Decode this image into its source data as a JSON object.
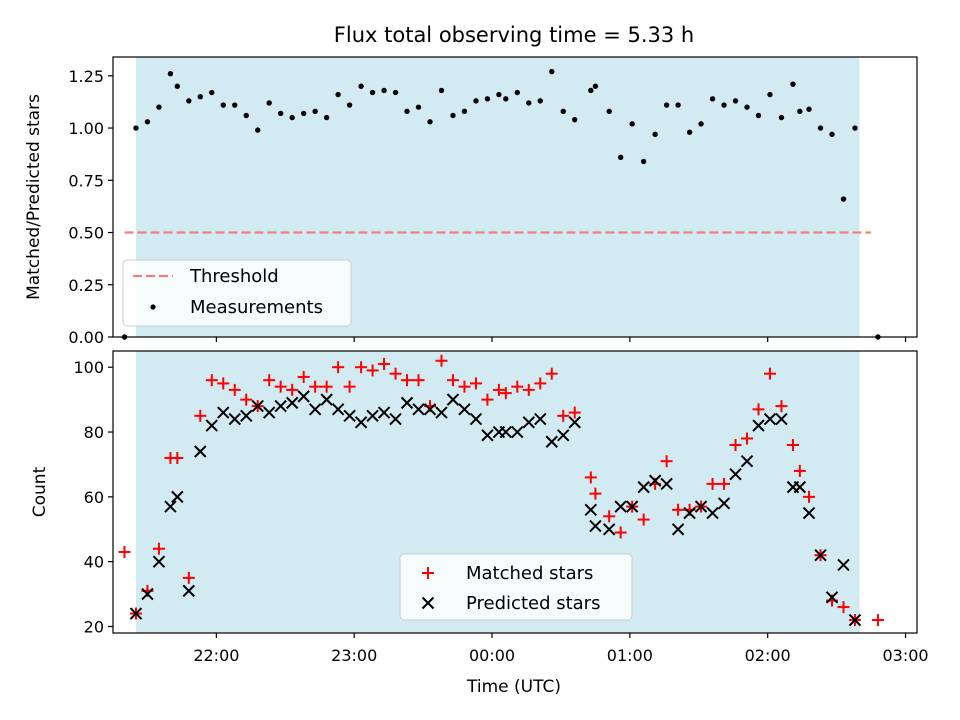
{
  "chart_data": [
    {
      "type": "scatter",
      "title": "Flux total observing time = 5.33 h",
      "xlabel": "",
      "ylabel": "Matched/Predicted stars",
      "ylim": [
        0,
        1.34
      ],
      "xlim": [
        "21:15",
        "03:05"
      ],
      "yticks": [
        "0.00",
        "0.25",
        "0.50",
        "0.75",
        "1.00",
        "1.25"
      ],
      "shaded_span": {
        "start": "21:25",
        "end": "02:40",
        "color": "#add8e6"
      },
      "threshold": {
        "name": "Threshold",
        "value": 0.5,
        "color": "#f08080",
        "x_start": "21:20",
        "x_end": "02:45"
      },
      "legend": [
        "Threshold",
        "Measurements"
      ],
      "legend_position": "lower-left",
      "series": [
        {
          "name": "Measurements",
          "color": "#000000",
          "marker": "dot",
          "points": [
            [
              "21:20",
              0.0
            ],
            [
              "21:25",
              1.0
            ],
            [
              "21:30",
              1.03
            ],
            [
              "21:35",
              1.1
            ],
            [
              "21:40",
              1.26
            ],
            [
              "21:43",
              1.2
            ],
            [
              "21:48",
              1.13
            ],
            [
              "21:53",
              1.15
            ],
            [
              "21:58",
              1.17
            ],
            [
              "22:03",
              1.11
            ],
            [
              "22:08",
              1.11
            ],
            [
              "22:13",
              1.06
            ],
            [
              "22:18",
              0.99
            ],
            [
              "22:23",
              1.12
            ],
            [
              "22:28",
              1.07
            ],
            [
              "22:33",
              1.05
            ],
            [
              "22:38",
              1.07
            ],
            [
              "22:43",
              1.08
            ],
            [
              "22:48",
              1.05
            ],
            [
              "22:53",
              1.16
            ],
            [
              "22:58",
              1.11
            ],
            [
              "23:03",
              1.2
            ],
            [
              "23:08",
              1.17
            ],
            [
              "23:13",
              1.18
            ],
            [
              "23:18",
              1.17
            ],
            [
              "23:23",
              1.08
            ],
            [
              "23:28",
              1.1
            ],
            [
              "23:33",
              1.03
            ],
            [
              "23:38",
              1.18
            ],
            [
              "23:43",
              1.06
            ],
            [
              "23:48",
              1.08
            ],
            [
              "23:53",
              1.13
            ],
            [
              "23:58",
              1.14
            ],
            [
              "00:03",
              1.16
            ],
            [
              "00:06",
              1.14
            ],
            [
              "00:11",
              1.17
            ],
            [
              "00:16",
              1.12
            ],
            [
              "00:21",
              1.13
            ],
            [
              "00:26",
              1.27
            ],
            [
              "00:31",
              1.08
            ],
            [
              "00:36",
              1.04
            ],
            [
              "00:43",
              1.18
            ],
            [
              "00:45",
              1.2
            ],
            [
              "00:51",
              1.08
            ],
            [
              "00:56",
              0.86
            ],
            [
              "01:01",
              1.02
            ],
            [
              "01:06",
              0.84
            ],
            [
              "01:11",
              0.97
            ],
            [
              "01:16",
              1.11
            ],
            [
              "01:21",
              1.11
            ],
            [
              "01:26",
              0.98
            ],
            [
              "01:31",
              1.02
            ],
            [
              "01:36",
              1.14
            ],
            [
              "01:41",
              1.11
            ],
            [
              "01:46",
              1.13
            ],
            [
              "01:51",
              1.1
            ],
            [
              "01:56",
              1.06
            ],
            [
              "02:01",
              1.16
            ],
            [
              "02:06",
              1.05
            ],
            [
              "02:11",
              1.21
            ],
            [
              "02:14",
              1.08
            ],
            [
              "02:18",
              1.09
            ],
            [
              "02:23",
              1.0
            ],
            [
              "02:28",
              0.97
            ],
            [
              "02:33",
              0.66
            ],
            [
              "02:38",
              1.0
            ],
            [
              "02:48",
              0.0
            ]
          ]
        }
      ]
    },
    {
      "type": "scatter",
      "title": "",
      "xlabel": "Time (UTC)",
      "ylabel": "Count",
      "ylim": [
        18,
        105
      ],
      "xlim": [
        "21:15",
        "03:05"
      ],
      "yticks": [
        "20",
        "40",
        "60",
        "80",
        "100"
      ],
      "xticks": [
        "22:00",
        "23:00",
        "00:00",
        "01:00",
        "02:00",
        "03:00"
      ],
      "shaded_span": {
        "start": "21:25",
        "end": "02:40",
        "color": "#add8e6"
      },
      "legend": [
        "Matched stars",
        "Predicted stars"
      ],
      "legend_position": "lower-center",
      "series": [
        {
          "name": "Matched stars",
          "color": "#ff0000",
          "marker": "plus",
          "points": [
            [
              "21:20",
              43
            ],
            [
              "21:25",
              24
            ],
            [
              "21:30",
              31
            ],
            [
              "21:35",
              44
            ],
            [
              "21:40",
              72
            ],
            [
              "21:43",
              72
            ],
            [
              "21:48",
              35
            ],
            [
              "21:53",
              85
            ],
            [
              "21:58",
              96
            ],
            [
              "22:03",
              95
            ],
            [
              "22:08",
              93
            ],
            [
              "22:13",
              90
            ],
            [
              "22:18",
              88
            ],
            [
              "22:23",
              96
            ],
            [
              "22:28",
              94
            ],
            [
              "22:33",
              93
            ],
            [
              "22:38",
              97
            ],
            [
              "22:43",
              94
            ],
            [
              "22:48",
              94
            ],
            [
              "22:53",
              100
            ],
            [
              "22:58",
              94
            ],
            [
              "23:03",
              100
            ],
            [
              "23:08",
              99
            ],
            [
              "23:13",
              101
            ],
            [
              "23:18",
              98
            ],
            [
              "23:23",
              96
            ],
            [
              "23:28",
              96
            ],
            [
              "23:33",
              88
            ],
            [
              "23:38",
              102
            ],
            [
              "23:43",
              96
            ],
            [
              "23:48",
              94
            ],
            [
              "23:53",
              95
            ],
            [
              "23:58",
              90
            ],
            [
              "00:03",
              93
            ],
            [
              "00:06",
              92
            ],
            [
              "00:11",
              94
            ],
            [
              "00:16",
              93
            ],
            [
              "00:21",
              95
            ],
            [
              "00:26",
              98
            ],
            [
              "00:31",
              85
            ],
            [
              "00:36",
              86
            ],
            [
              "00:43",
              66
            ],
            [
              "00:45",
              61
            ],
            [
              "00:51",
              54
            ],
            [
              "00:56",
              49
            ],
            [
              "01:01",
              57
            ],
            [
              "01:06",
              53
            ],
            [
              "01:11",
              64
            ],
            [
              "01:16",
              71
            ],
            [
              "01:21",
              56
            ],
            [
              "01:26",
              56
            ],
            [
              "01:31",
              57
            ],
            [
              "01:36",
              64
            ],
            [
              "01:41",
              64
            ],
            [
              "01:46",
              76
            ],
            [
              "01:51",
              78
            ],
            [
              "01:56",
              87
            ],
            [
              "02:01",
              98
            ],
            [
              "02:06",
              88
            ],
            [
              "02:11",
              76
            ],
            [
              "02:14",
              68
            ],
            [
              "02:18",
              60
            ],
            [
              "02:23",
              42
            ],
            [
              "02:28",
              28
            ],
            [
              "02:33",
              26
            ],
            [
              "02:38",
              22
            ],
            [
              "02:48",
              22
            ]
          ]
        },
        {
          "name": "Predicted stars",
          "color": "#000000",
          "marker": "cross",
          "points": [
            [
              "21:25",
              24
            ],
            [
              "21:30",
              30
            ],
            [
              "21:35",
              40
            ],
            [
              "21:40",
              57
            ],
            [
              "21:43",
              60
            ],
            [
              "21:48",
              31
            ],
            [
              "21:53",
              74
            ],
            [
              "21:58",
              82
            ],
            [
              "22:03",
              86
            ],
            [
              "22:08",
              84
            ],
            [
              "22:13",
              85
            ],
            [
              "22:18",
              88
            ],
            [
              "22:23",
              86
            ],
            [
              "22:28",
              88
            ],
            [
              "22:33",
              89
            ],
            [
              "22:38",
              91
            ],
            [
              "22:43",
              87
            ],
            [
              "22:48",
              90
            ],
            [
              "22:53",
              87
            ],
            [
              "22:58",
              85
            ],
            [
              "23:03",
              83
            ],
            [
              "23:08",
              85
            ],
            [
              "23:13",
              86
            ],
            [
              "23:18",
              84
            ],
            [
              "23:23",
              89
            ],
            [
              "23:28",
              87
            ],
            [
              "23:33",
              87
            ],
            [
              "23:38",
              86
            ],
            [
              "23:43",
              90
            ],
            [
              "23:48",
              87
            ],
            [
              "23:53",
              84
            ],
            [
              "23:58",
              79
            ],
            [
              "00:03",
              80
            ],
            [
              "00:06",
              80
            ],
            [
              "00:11",
              80
            ],
            [
              "00:16",
              83
            ],
            [
              "00:21",
              84
            ],
            [
              "00:26",
              77
            ],
            [
              "00:31",
              79
            ],
            [
              "00:36",
              83
            ],
            [
              "00:43",
              56
            ],
            [
              "00:45",
              51
            ],
            [
              "00:51",
              50
            ],
            [
              "00:56",
              57
            ],
            [
              "01:01",
              57
            ],
            [
              "01:06",
              63
            ],
            [
              "01:11",
              65
            ],
            [
              "01:16",
              64
            ],
            [
              "01:21",
              50
            ],
            [
              "01:26",
              55
            ],
            [
              "01:31",
              57
            ],
            [
              "01:36",
              55
            ],
            [
              "01:41",
              58
            ],
            [
              "01:46",
              67
            ],
            [
              "01:51",
              71
            ],
            [
              "01:56",
              82
            ],
            [
              "02:01",
              84
            ],
            [
              "02:06",
              84
            ],
            [
              "02:11",
              63
            ],
            [
              "02:14",
              63
            ],
            [
              "02:18",
              55
            ],
            [
              "02:23",
              42
            ],
            [
              "02:28",
              29
            ],
            [
              "02:33",
              39
            ],
            [
              "02:38",
              22
            ]
          ]
        }
      ]
    }
  ]
}
